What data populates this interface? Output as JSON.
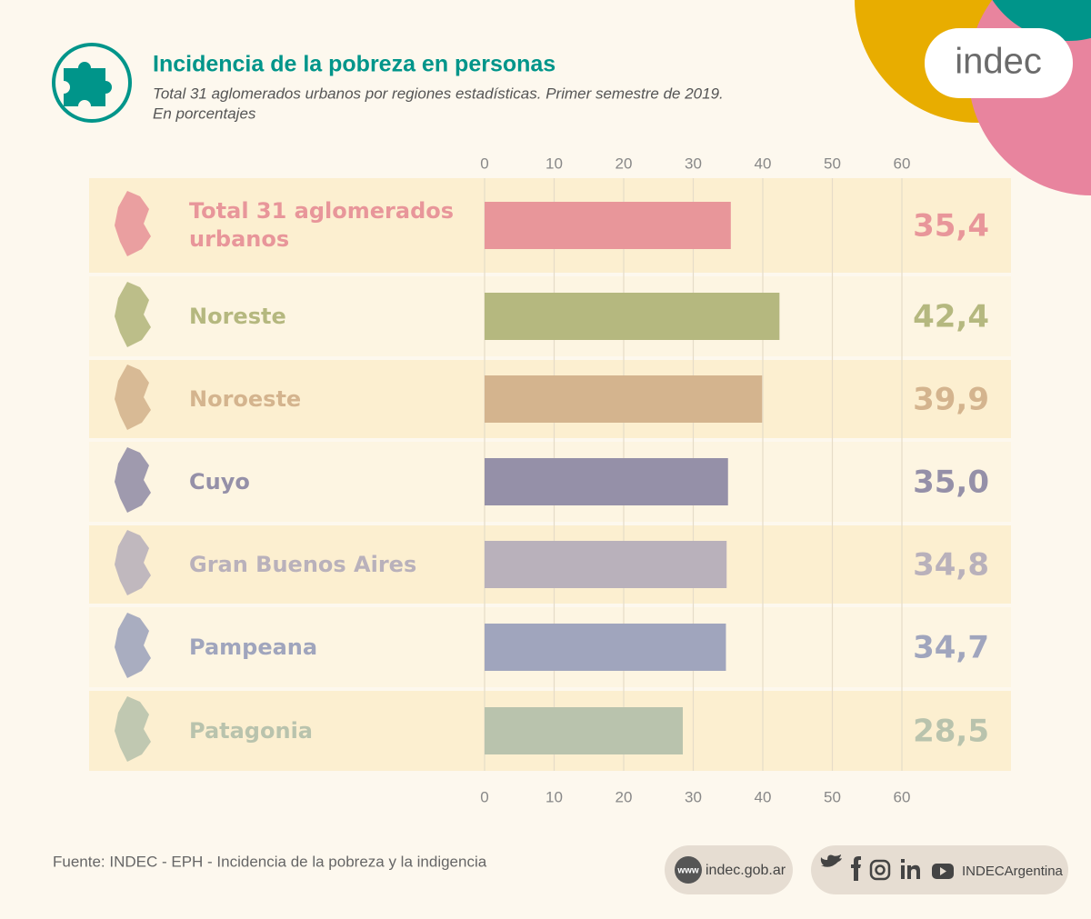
{
  "chart_data": {
    "type": "bar",
    "orientation": "horizontal",
    "title": "Incidencia de la pobreza en personas",
    "subtitle": "Total 31 aglomerados urbanos por regiones estadísticas. Primer semestre de 2019.",
    "subtitle_2": "En porcentajes",
    "categories": [
      "Total 31 aglomerados urbanos",
      "Noreste",
      "Noroeste",
      "Cuyo",
      "Gran Buenos Aires",
      "Pampeana",
      "Patagonia"
    ],
    "values": [
      35.4,
      42.4,
      39.9,
      35.0,
      34.8,
      34.7,
      28.5
    ],
    "value_labels": [
      "35,4",
      "42,4",
      "39,9",
      "35,0",
      "34,8",
      "34,7",
      "28,5"
    ],
    "colors": [
      "#e8969a",
      "#b5b87f",
      "#d4b48e",
      "#9590a8",
      "#b9b1bb",
      "#a0a5bd",
      "#b9c3ad"
    ],
    "xlim": [
      0,
      60
    ],
    "xticks": [
      0,
      10,
      20,
      30,
      40,
      50,
      60
    ],
    "grid": true
  },
  "footer": {
    "source": "Fuente: INDEC - EPH - Incidencia de la pobreza y la indigencia",
    "web_icon": "www",
    "website": "indec.gob.ar",
    "social_handle": "INDECArgentina"
  },
  "logo": "indec"
}
